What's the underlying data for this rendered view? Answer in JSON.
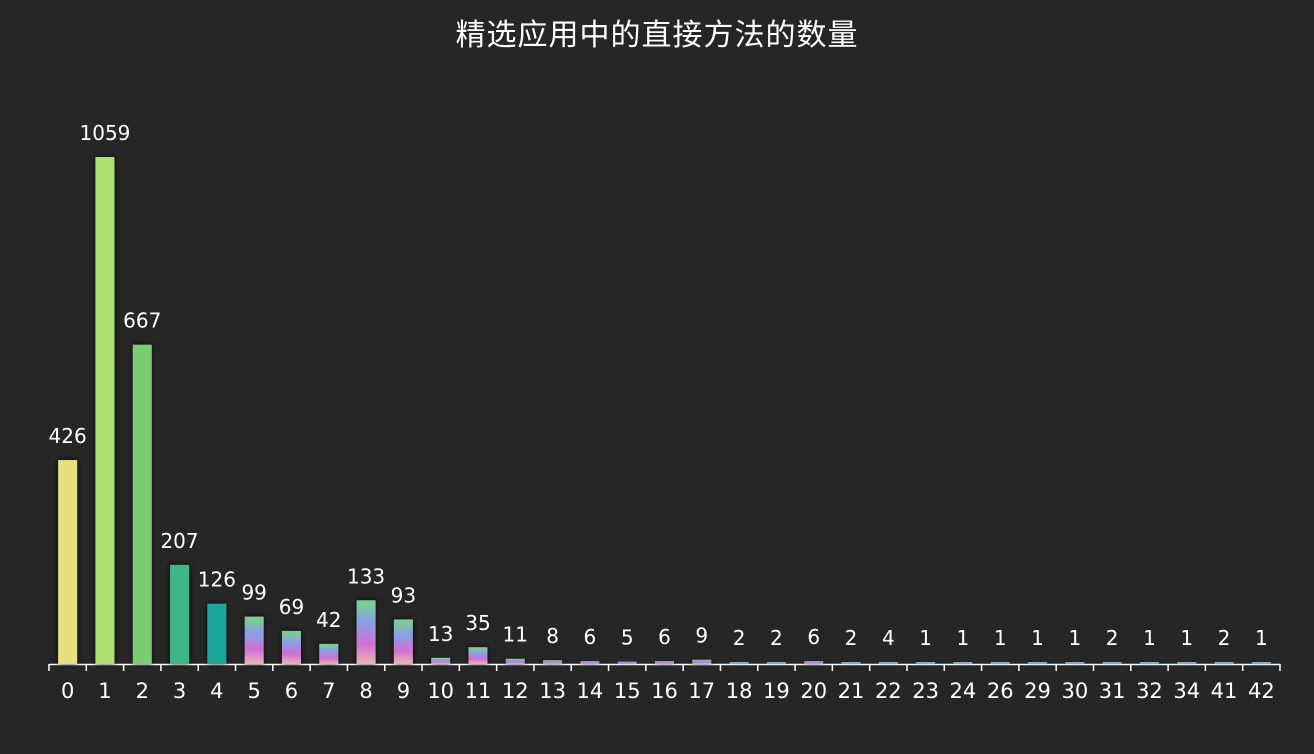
{
  "chart_data": {
    "type": "bar",
    "title": "精选应用中的直接方法的数量",
    "xlabel": "",
    "ylabel": "",
    "ylim": [
      0,
      1100
    ],
    "grid": false,
    "categories": [
      "0",
      "1",
      "2",
      "3",
      "4",
      "5",
      "6",
      "7",
      "8",
      "9",
      "10",
      "11",
      "12",
      "13",
      "14",
      "15",
      "16",
      "17",
      "18",
      "19",
      "20",
      "21",
      "22",
      "23",
      "24",
      "26",
      "29",
      "30",
      "31",
      "32",
      "34",
      "41",
      "42"
    ],
    "values": [
      426,
      1059,
      667,
      207,
      126,
      99,
      69,
      42,
      133,
      93,
      13,
      35,
      11,
      8,
      6,
      5,
      6,
      9,
      2,
      2,
      6,
      2,
      4,
      1,
      1,
      1,
      1,
      1,
      2,
      1,
      1,
      2,
      1
    ],
    "colors": {
      "background": "#262626",
      "text": "#ffffff",
      "axis": "#ffffff",
      "bar_0": "#e8e07e",
      "bar_1": "#aee071",
      "bar_2": "#79cd72",
      "bar_3": "#3fb58b",
      "bar_4": "#1aa79c",
      "gradient_top": "#7bd38a",
      "gradient_mid": "#8a9fe6",
      "gradient_low": "#d36fd3",
      "gradient_bottom": "#e8b7b2"
    }
  }
}
